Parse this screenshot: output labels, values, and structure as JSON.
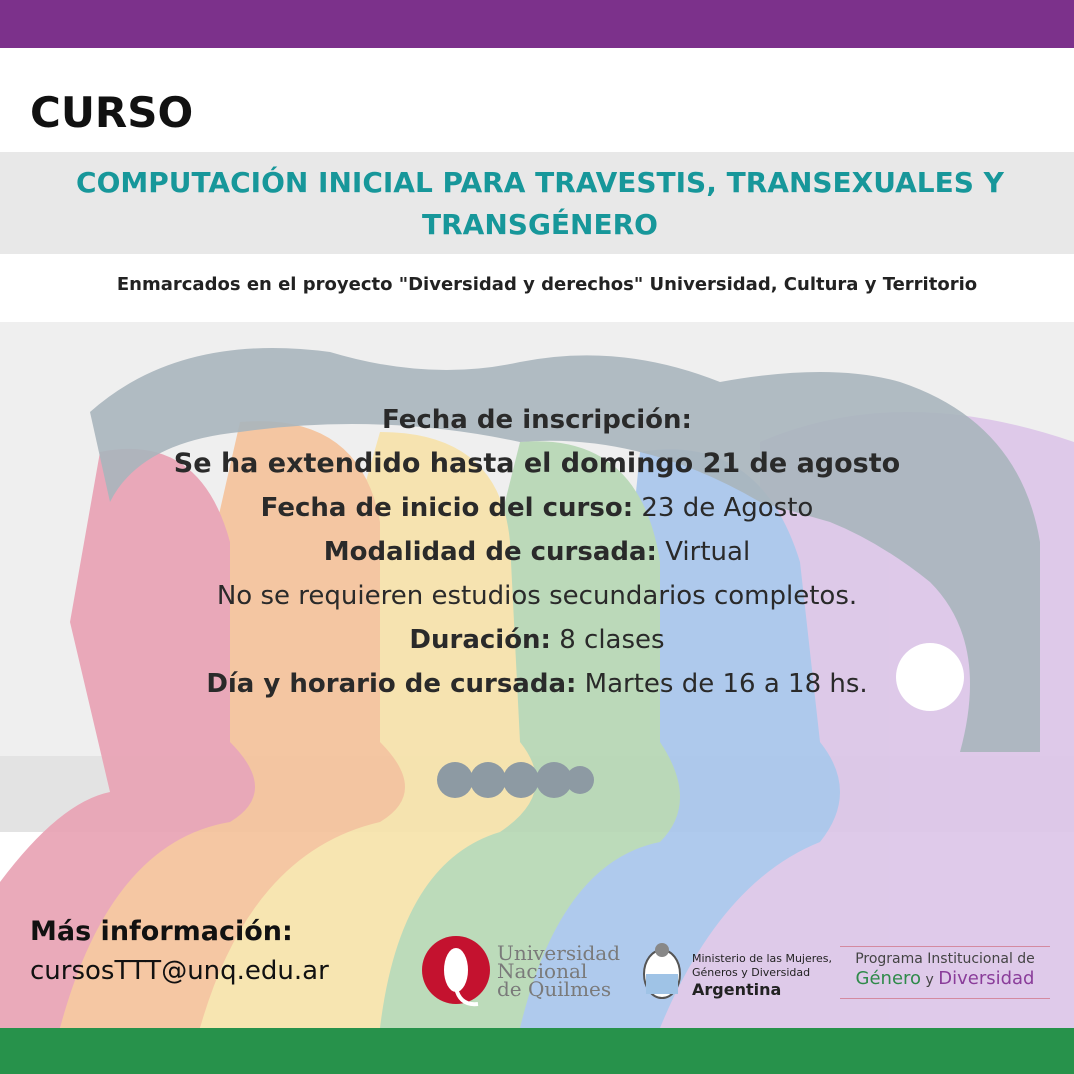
{
  "header": {
    "label": "CURSO",
    "title": "COMPUTACIÓN INICIAL PARA TRAVESTIS, TRANSEXUALES Y TRANSGÉNERO",
    "subtitle": "Enmarcados en el proyecto \"Diversidad y derechos\" Universidad, Cultura y Territorio"
  },
  "info": {
    "inscripcion_label": "Fecha de inscripción:",
    "inscripcion_value": "Se ha extendido hasta el domingo 21 de agosto",
    "inicio_label": "Fecha de inicio del curso:",
    "inicio_value": " 23 de Agosto",
    "modalidad_label": "Modalidad de cursada:",
    "modalidad_value": " Virtual",
    "requisito": "No se requieren estudios secundarios completos.",
    "duracion_label": "Duración:",
    "duracion_value": " 8 clases",
    "horario_label": "Día y horario de cursada:",
    "horario_value": " Martes de 16 a 18 hs."
  },
  "contact": {
    "label": "Más información:",
    "email": "cursosTTT@unq.edu.ar"
  },
  "logos": {
    "unq": [
      "Universidad",
      "Nacional",
      "de Quilmes"
    ],
    "ministerio": [
      "Ministerio de las Mujeres,",
      "Géneros y Diversidad",
      "Argentina"
    ],
    "programa": {
      "line1": "Programa Institucional de",
      "genero": "Género",
      "y": " y ",
      "diversidad": "Diversidad"
    }
  },
  "colors": {
    "purple": "#7c318b",
    "green": "#27924b",
    "teal": "#17979a",
    "pink": "#e9a3b5",
    "orange": "#f5c39c",
    "yellow": "#f7e3ab",
    "mint": "#b7d8b5",
    "blue": "#a9c6ec",
    "lavender": "#dcc6e8",
    "hair": "#a9b5bd"
  }
}
